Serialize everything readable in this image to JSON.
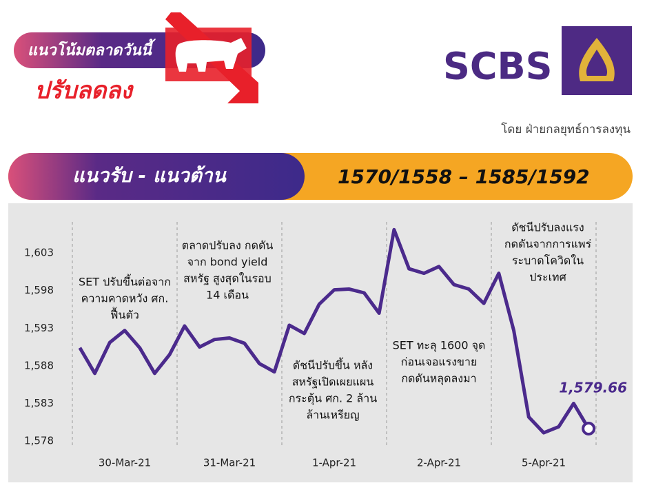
{
  "header": {
    "tagline": "แนวโน้มตลาดวันนี้",
    "trend": "ปรับลดลง",
    "logo": "SCBS",
    "byline": "โดย ฝ่ายกลยุทธ์การลงทุน"
  },
  "band": {
    "label": "แนวรับ - แนวต้าน",
    "levels": "1570/1558 – 1585/1592"
  },
  "chart_data": {
    "type": "line",
    "categories": [
      null,
      null,
      null,
      "30-Mar-21",
      null,
      null,
      null,
      null,
      null,
      null,
      "31-Mar-21",
      null,
      null,
      null,
      null,
      null,
      null,
      "1-Apr-21",
      null,
      null,
      null,
      null,
      null,
      null,
      "2-Apr-21",
      null,
      null,
      null,
      null,
      null,
      null,
      "5-Apr-21",
      null,
      null,
      null
    ],
    "series": [
      {
        "name": "SET",
        "color": "#4b2a8c",
        "values": [
          1590.4,
          1587.0,
          1591.1,
          1592.7,
          1590.4,
          1587.0,
          1589.5,
          1593.3,
          1590.5,
          1591.5,
          1591.7,
          1591.0,
          1588.3,
          1587.2,
          1593.4,
          1592.3,
          1596.2,
          1598.1,
          1598.2,
          1597.7,
          1595.0,
          1606.1,
          1600.9,
          1600.3,
          1601.2,
          1598.8,
          1598.2,
          1596.3,
          1600.3,
          1592.7,
          1581.2,
          1579.1,
          1579.9,
          1583.0,
          1579.66
        ],
        "value_labels": [
          null,
          null,
          null,
          null,
          null,
          null,
          null,
          null,
          null,
          null,
          null,
          null,
          null,
          null,
          null,
          null,
          null,
          null,
          null,
          null,
          null,
          null,
          null,
          null,
          null,
          null,
          null,
          null,
          null,
          null,
          null,
          null,
          null,
          null,
          "1,579.66"
        ]
      }
    ],
    "ylim": [
      1577,
      1607.5
    ],
    "yticks": [
      {
        "value": 1578,
        "label": "1,578"
      },
      {
        "value": 1583,
        "label": "1,583"
      },
      {
        "value": 1588,
        "label": "1,588"
      },
      {
        "value": 1593,
        "label": "1,593"
      },
      {
        "value": 1598,
        "label": "1,598"
      },
      {
        "value": 1603,
        "label": "1,603"
      }
    ],
    "annotations": [
      [
        "SET ปรับขึ้นต่อจาก",
        "ความคาดหวัง ศก.",
        "ฟื้นตัว"
      ],
      [
        "ตลาดปรับลง กดดัน",
        "จาก bond yield",
        "สหรัฐ สูงสุดในรอบ",
        "14 เดือน"
      ],
      [
        "ดัชนีปรับขึ้น หลัง",
        "สหรัฐเปิดเผยแผน",
        "กระตุ้น ศก. 2 ล้าน",
        "ล้านเหรียญ"
      ],
      [
        "SET ทะลุ 1600 จุด",
        "ก่อนเจอแรงขาย",
        "กดดันหลุดลงมา"
      ],
      [
        "ดัชนีปรับลงแรง",
        "กดดันจากการแพร่",
        "ระบาดโควิดใน",
        "ประเทศ"
      ]
    ]
  }
}
